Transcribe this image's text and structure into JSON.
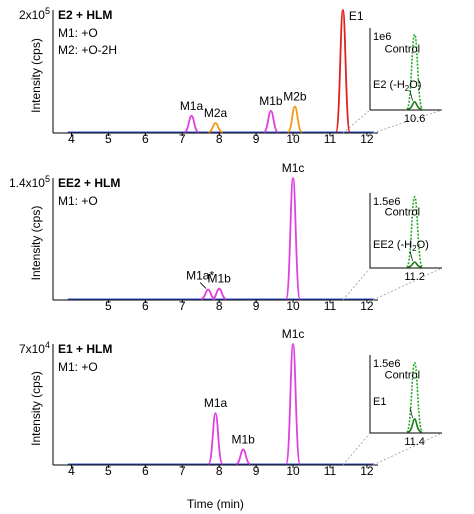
{
  "figure": {
    "xlabel": "Time (min)",
    "colors": {
      "m1": "#e040e0",
      "m2": "#f39c12",
      "parent": "#e02020",
      "inset_control": "#22aa22",
      "inset_dehydr": "#1a7a1a",
      "blue": "#3050d0"
    }
  },
  "chart_data": [
    {
      "type": "line",
      "title": "E2 + HLM",
      "notes": [
        "M1: +O",
        "M2: +O-2H"
      ],
      "ylabel": "Intensity (cps)",
      "ymax_label": "2x10",
      "ymax_exp": "5",
      "xlim": [
        3.5,
        12.3
      ],
      "ylim": [
        0,
        200000
      ],
      "xticks": [
        "4",
        "5",
        "6",
        "7",
        "8",
        "9",
        "10",
        "11",
        "12"
      ],
      "peaks": [
        {
          "label": "M1a",
          "rt": 7.25,
          "height": 28000,
          "series": "m1"
        },
        {
          "label": "M2a",
          "rt": 7.9,
          "height": 16000,
          "series": "m2"
        },
        {
          "label": "M1b",
          "rt": 9.4,
          "height": 36000,
          "series": "m1"
        },
        {
          "label": "M2b",
          "rt": 10.05,
          "height": 43000,
          "series": "m2"
        },
        {
          "label": "E1",
          "rt": 11.35,
          "height": 200000,
          "series": "parent"
        }
      ],
      "inset": {
        "ymax_label": "1e6",
        "x_label": "10.6",
        "control_label": "Control",
        "dehydr_label": "E2 (-H",
        "dehydr_sub": "2",
        "dehydr_end": "O)",
        "control_height": 0.92,
        "dehydr_height": 0.1
      }
    },
    {
      "type": "line",
      "title": "EE2 + HLM",
      "notes": [
        "M1: +O"
      ],
      "ylabel": "Intensity (cps)",
      "ymax_label": "1.4x10",
      "ymax_exp": "5",
      "xlim": [
        3.5,
        12.3
      ],
      "ylim": [
        0,
        140000
      ],
      "xticks": [
        "5",
        "6",
        "7",
        "8",
        "9",
        "10",
        "11",
        "12"
      ],
      "peaks": [
        {
          "label": "M1a*",
          "rt": 7.7,
          "height": 12000,
          "series": "m1"
        },
        {
          "label": "M1b",
          "rt": 8.0,
          "height": 13000,
          "series": "m1"
        },
        {
          "label": "M1c",
          "rt": 10.0,
          "height": 140000,
          "series": "m1"
        }
      ],
      "inset": {
        "ymax_label": "1.5e6",
        "x_label": "11.2",
        "control_label": "Control",
        "dehydr_label": "EE2 (-H",
        "dehydr_sub": "2",
        "dehydr_end": "O)",
        "control_height": 0.95,
        "dehydr_height": 0.08
      }
    },
    {
      "type": "line",
      "title": "E1 + HLM",
      "notes": [
        "M1: +O"
      ],
      "ylabel": "Intensity (cps)",
      "ymax_label": "7x10",
      "ymax_exp": "4",
      "xlim": [
        3.5,
        12.3
      ],
      "ylim": [
        0,
        70000
      ],
      "xticks": [
        "4",
        "5",
        "6",
        "7",
        "8",
        "9",
        "10",
        "11",
        "12"
      ],
      "peaks": [
        {
          "label": "M1a",
          "rt": 7.9,
          "height": 30000,
          "series": "m1"
        },
        {
          "label": "M1b",
          "rt": 8.65,
          "height": 9000,
          "series": "m1"
        },
        {
          "label": "M1c",
          "rt": 10.0,
          "height": 70000,
          "series": "m1"
        }
      ],
      "inset": {
        "ymax_label": "1.5e6",
        "x_label": "11.4",
        "control_label": "Control",
        "dehydr_label": "E1",
        "dehydr_sub": "",
        "dehydr_end": "",
        "control_height": 0.9,
        "dehydr_height": 0.18
      }
    }
  ]
}
